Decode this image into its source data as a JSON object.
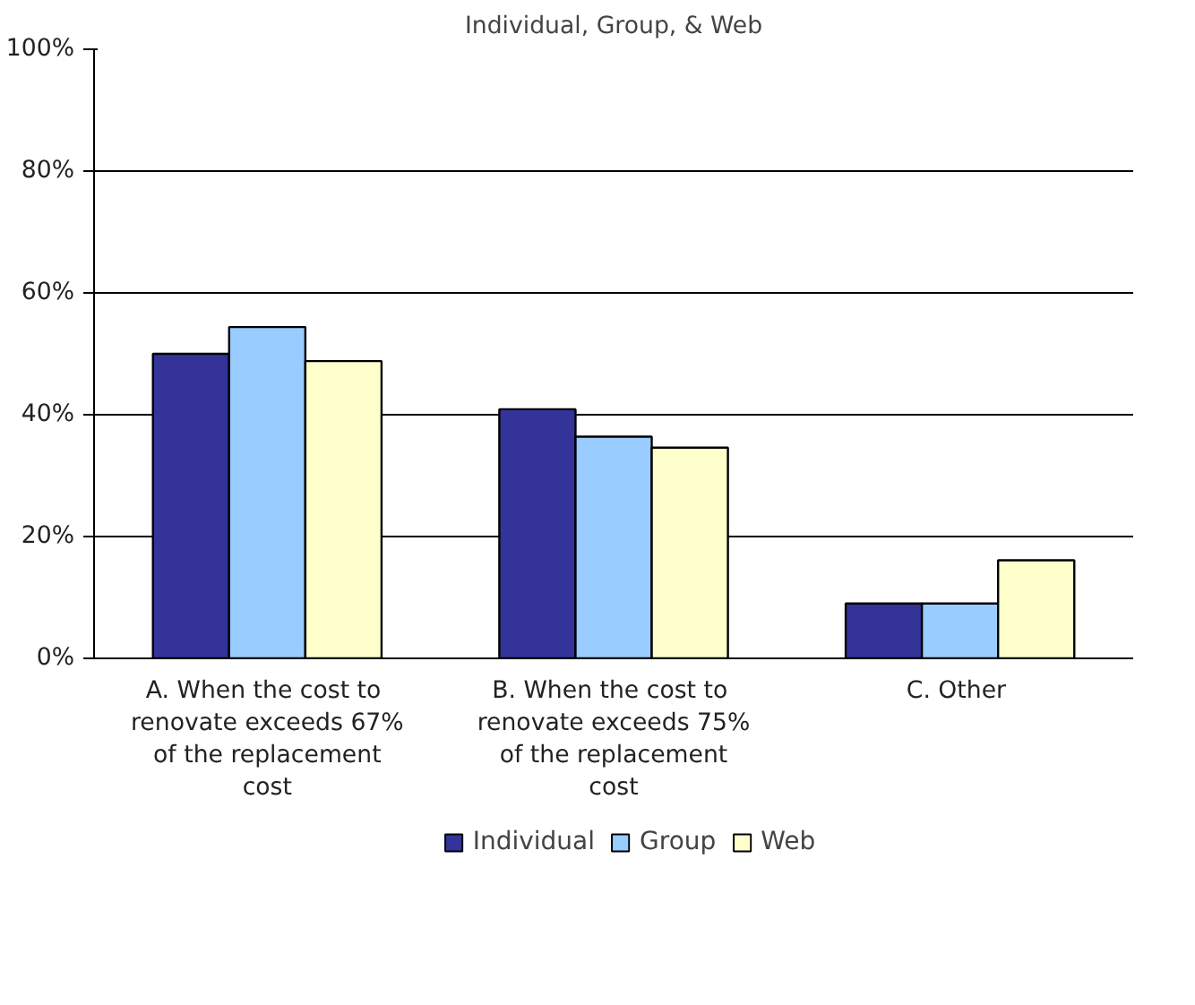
{
  "chart_data": {
    "type": "bar",
    "title": "Individual, Group, & Web",
    "categories": [
      "A.  When the cost to renovate exceeds 67% of the replacement cost",
      "B.  When the cost to renovate exceeds 75% of the replacement cost",
      "C.  Other"
    ],
    "series": [
      {
        "name": "Individual",
        "color": "#333399",
        "values": [
          50,
          40.9,
          9
        ]
      },
      {
        "name": "Group",
        "color": "#99ccff",
        "values": [
          54.4,
          36.4,
          9
        ]
      },
      {
        "name": "Web",
        "color": "#ffffcc",
        "values": [
          48.8,
          34.6,
          16.1
        ]
      }
    ],
    "ylim": [
      0,
      100
    ],
    "yticks": [
      {
        "value": 0,
        "label": "0%"
      },
      {
        "value": 20,
        "label": "20%"
      },
      {
        "value": 40,
        "label": "40%"
      },
      {
        "value": 60,
        "label": "60%"
      },
      {
        "value": 80,
        "label": "80%"
      },
      {
        "value": 100,
        "label": "100%"
      }
    ],
    "grid": "y",
    "legend": "bottom"
  }
}
